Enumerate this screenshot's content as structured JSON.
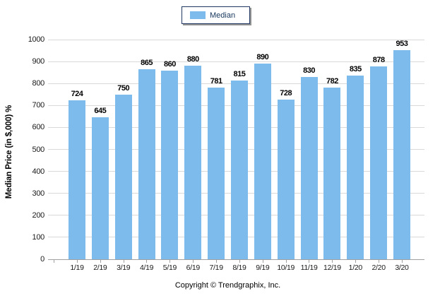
{
  "legend": {
    "label": "Median",
    "swatch_color": "#7CBBEC",
    "border_color": "#1F3864"
  },
  "footer": {
    "copyright": "Copyright © Trendgraphix, Inc."
  },
  "colors": {
    "bar": "#7CBBEC",
    "gridline": "#D9D9D9",
    "axis_line": "#A0A0A0",
    "label_text": "#000000"
  },
  "chart_data": {
    "type": "bar",
    "title": "",
    "series_name": "Median",
    "categories": [
      "1/19",
      "2/19",
      "3/19",
      "4/19",
      "5/19",
      "6/19",
      "7/19",
      "8/19",
      "9/19",
      "10/19",
      "11/19",
      "12/19",
      "1/20",
      "2/20",
      "3/20"
    ],
    "values": [
      724,
      645,
      750,
      865,
      860,
      880,
      781,
      815,
      890,
      728,
      830,
      782,
      835,
      878,
      953
    ],
    "value_labels_shown": true,
    "xlabel": "",
    "ylabel": "Median Price (in $,000) %",
    "ylim": [
      0,
      1000
    ],
    "yticks": [
      0,
      100,
      200,
      300,
      400,
      500,
      600,
      700,
      800,
      900,
      1000
    ],
    "grid": "horizontal",
    "legend_position": "top-center",
    "bar_color": "#7CBBEC"
  }
}
